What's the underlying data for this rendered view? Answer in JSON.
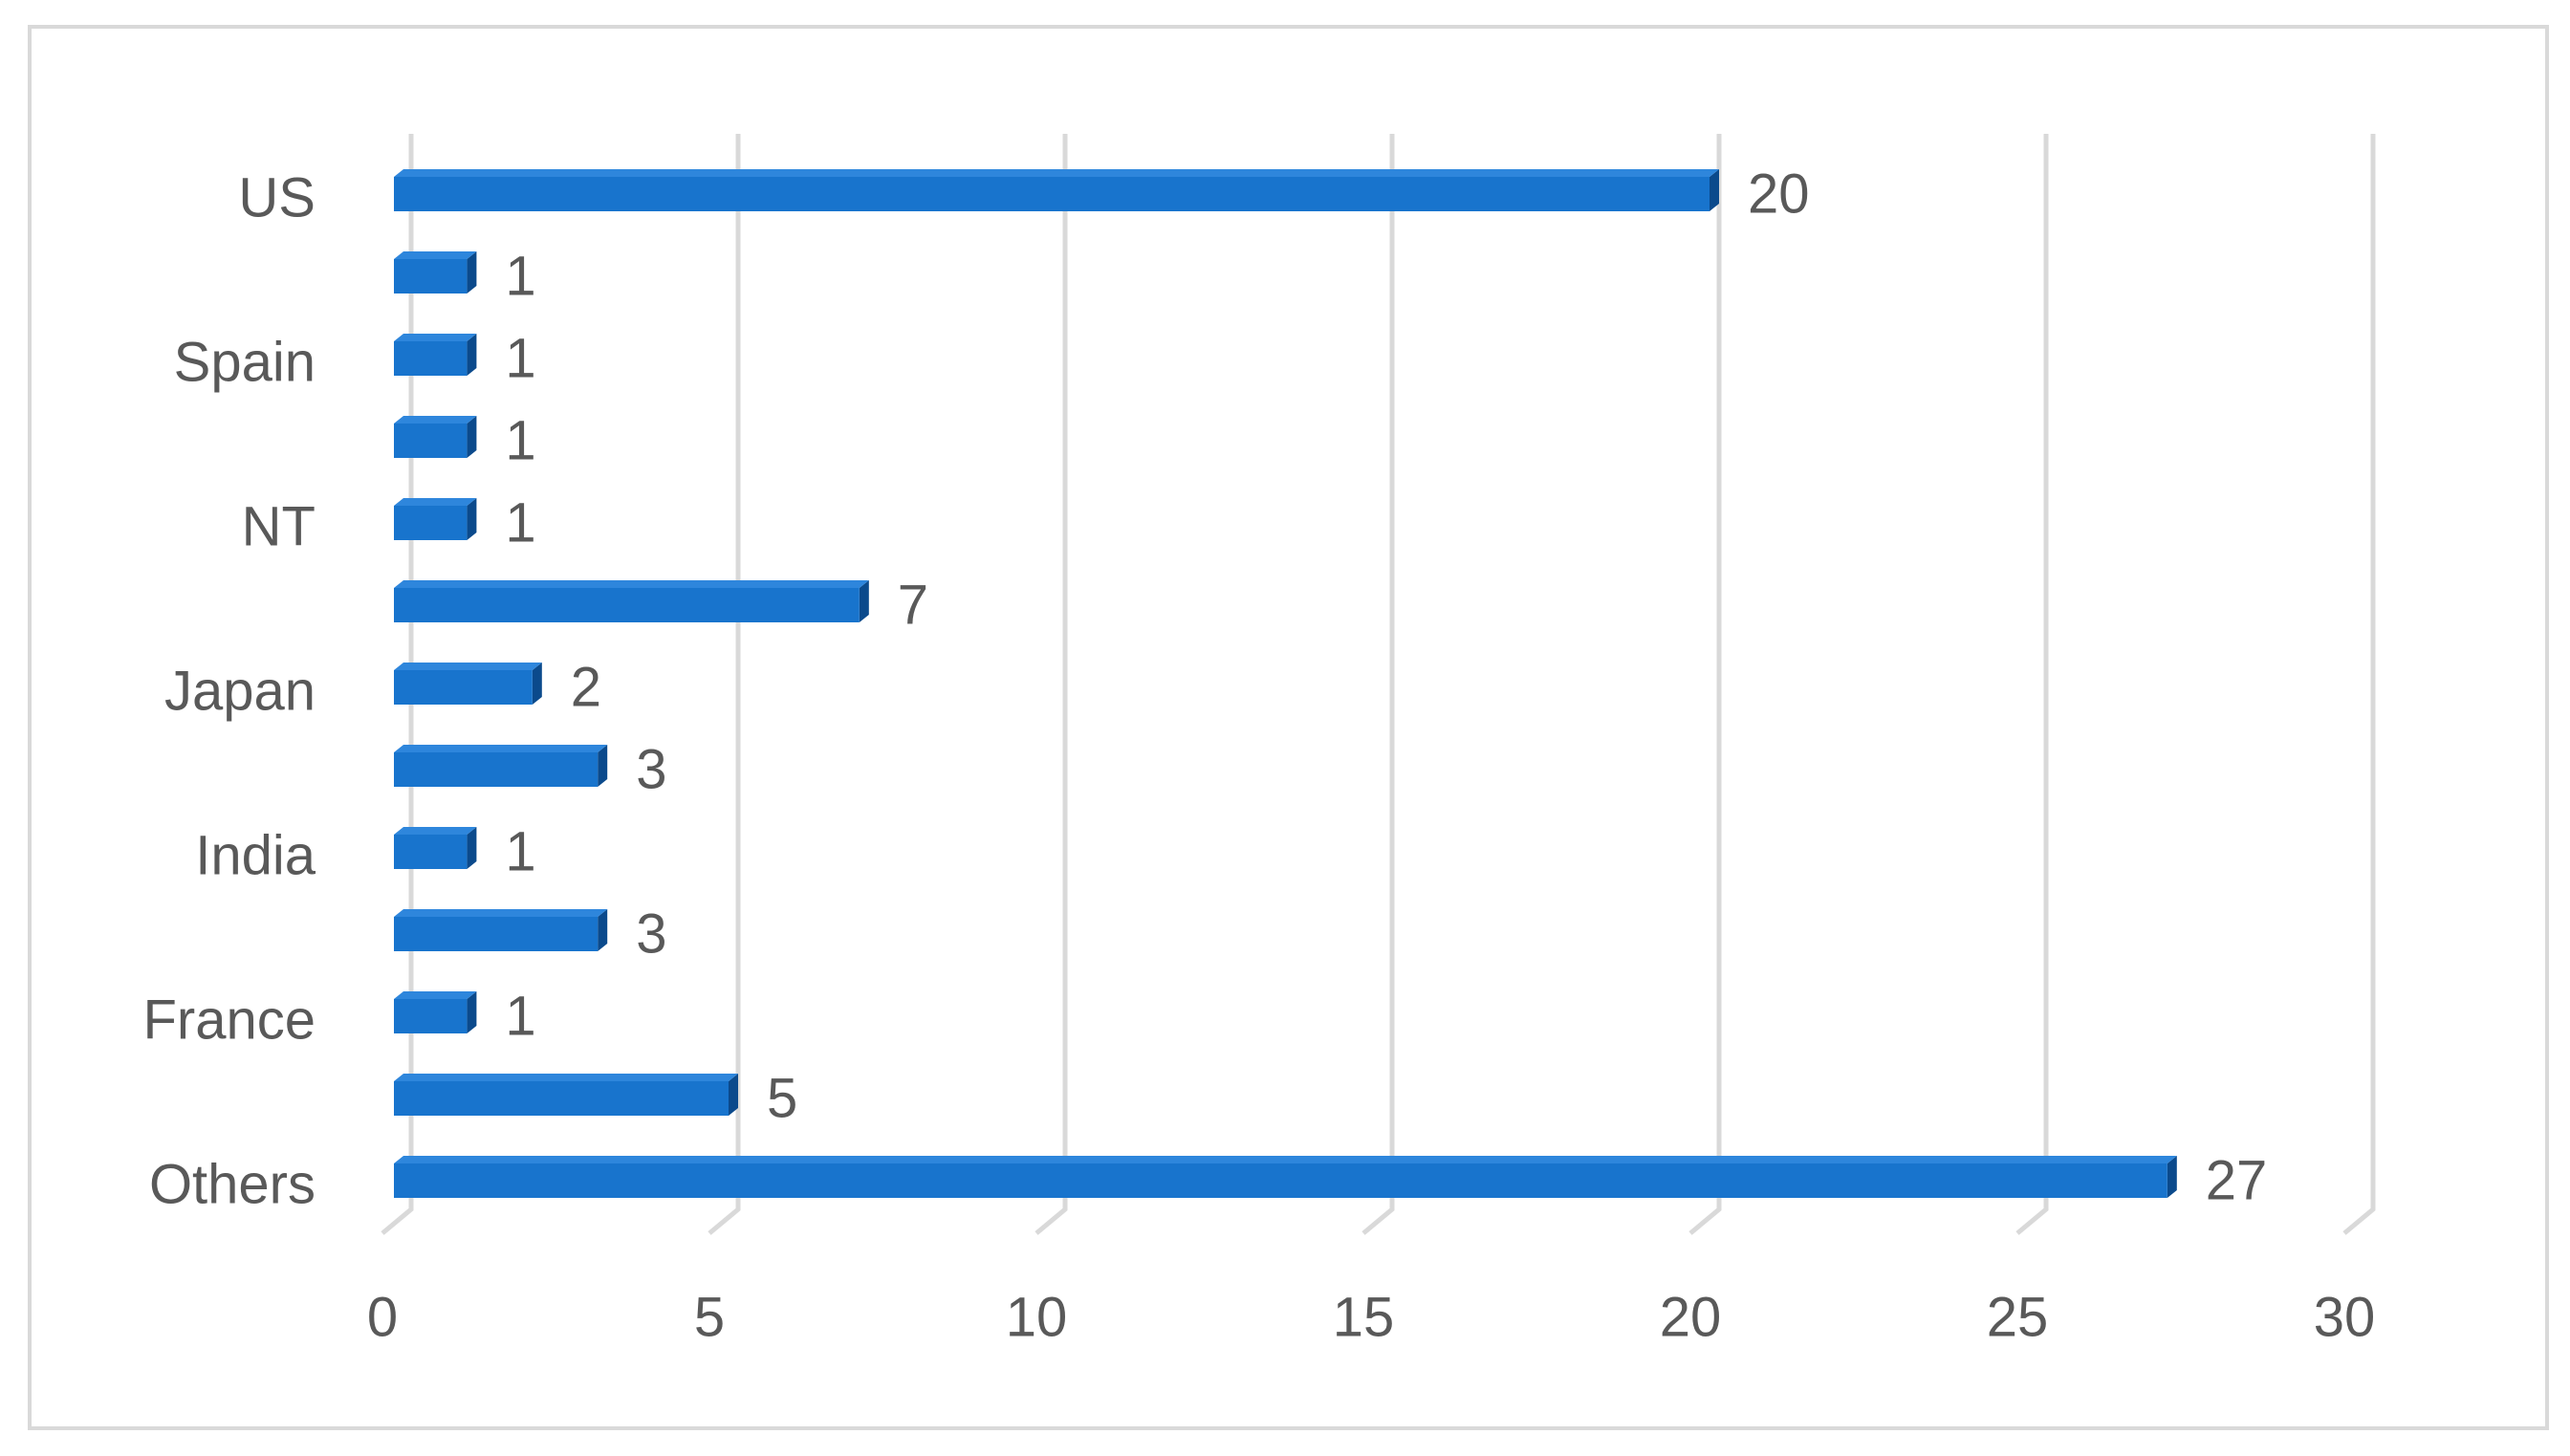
{
  "chart_data": {
    "type": "bar",
    "orientation": "horizontal",
    "categories": [
      "US",
      null,
      "Spain",
      null,
      "NT",
      null,
      "Japan",
      null,
      "India",
      null,
      "France",
      null,
      "Others"
    ],
    "values": [
      20,
      1,
      1,
      1,
      1,
      7,
      2,
      3,
      1,
      3,
      1,
      5,
      27
    ],
    "color": "#1874cd",
    "xlim": [
      0,
      30
    ],
    "xticks": [
      0,
      5,
      10,
      15,
      20,
      25,
      30
    ],
    "grid": true
  }
}
